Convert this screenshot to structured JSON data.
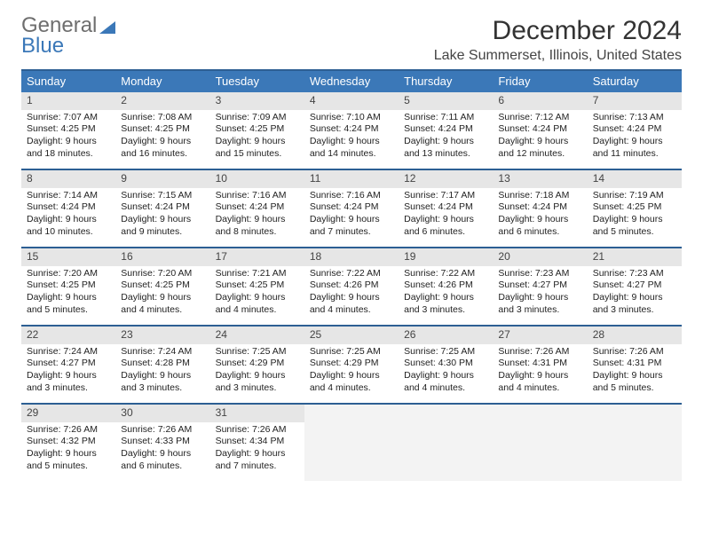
{
  "logo": {
    "line1": "General",
    "line2": "Blue"
  },
  "header": {
    "title": "December 2024",
    "location": "Lake Summerset, Illinois, United States"
  },
  "colors": {
    "header_bar": "#3b78b8",
    "week_divider": "#2d5f93",
    "daynum_bg": "#e6e6e6",
    "empty_bg": "#f3f3f3",
    "text": "#222222"
  },
  "daysOfWeek": [
    "Sunday",
    "Monday",
    "Tuesday",
    "Wednesday",
    "Thursday",
    "Friday",
    "Saturday"
  ],
  "weeks": [
    [
      {
        "n": "1",
        "sunrise": "7:07 AM",
        "sunset": "4:25 PM",
        "daylight": "9 hours and 18 minutes."
      },
      {
        "n": "2",
        "sunrise": "7:08 AM",
        "sunset": "4:25 PM",
        "daylight": "9 hours and 16 minutes."
      },
      {
        "n": "3",
        "sunrise": "7:09 AM",
        "sunset": "4:25 PM",
        "daylight": "9 hours and 15 minutes."
      },
      {
        "n": "4",
        "sunrise": "7:10 AM",
        "sunset": "4:24 PM",
        "daylight": "9 hours and 14 minutes."
      },
      {
        "n": "5",
        "sunrise": "7:11 AM",
        "sunset": "4:24 PM",
        "daylight": "9 hours and 13 minutes."
      },
      {
        "n": "6",
        "sunrise": "7:12 AM",
        "sunset": "4:24 PM",
        "daylight": "9 hours and 12 minutes."
      },
      {
        "n": "7",
        "sunrise": "7:13 AM",
        "sunset": "4:24 PM",
        "daylight": "9 hours and 11 minutes."
      }
    ],
    [
      {
        "n": "8",
        "sunrise": "7:14 AM",
        "sunset": "4:24 PM",
        "daylight": "9 hours and 10 minutes."
      },
      {
        "n": "9",
        "sunrise": "7:15 AM",
        "sunset": "4:24 PM",
        "daylight": "9 hours and 9 minutes."
      },
      {
        "n": "10",
        "sunrise": "7:16 AM",
        "sunset": "4:24 PM",
        "daylight": "9 hours and 8 minutes."
      },
      {
        "n": "11",
        "sunrise": "7:16 AM",
        "sunset": "4:24 PM",
        "daylight": "9 hours and 7 minutes."
      },
      {
        "n": "12",
        "sunrise": "7:17 AM",
        "sunset": "4:24 PM",
        "daylight": "9 hours and 6 minutes."
      },
      {
        "n": "13",
        "sunrise": "7:18 AM",
        "sunset": "4:24 PM",
        "daylight": "9 hours and 6 minutes."
      },
      {
        "n": "14",
        "sunrise": "7:19 AM",
        "sunset": "4:25 PM",
        "daylight": "9 hours and 5 minutes."
      }
    ],
    [
      {
        "n": "15",
        "sunrise": "7:20 AM",
        "sunset": "4:25 PM",
        "daylight": "9 hours and 5 minutes."
      },
      {
        "n": "16",
        "sunrise": "7:20 AM",
        "sunset": "4:25 PM",
        "daylight": "9 hours and 4 minutes."
      },
      {
        "n": "17",
        "sunrise": "7:21 AM",
        "sunset": "4:25 PM",
        "daylight": "9 hours and 4 minutes."
      },
      {
        "n": "18",
        "sunrise": "7:22 AM",
        "sunset": "4:26 PM",
        "daylight": "9 hours and 4 minutes."
      },
      {
        "n": "19",
        "sunrise": "7:22 AM",
        "sunset": "4:26 PM",
        "daylight": "9 hours and 3 minutes."
      },
      {
        "n": "20",
        "sunrise": "7:23 AM",
        "sunset": "4:27 PM",
        "daylight": "9 hours and 3 minutes."
      },
      {
        "n": "21",
        "sunrise": "7:23 AM",
        "sunset": "4:27 PM",
        "daylight": "9 hours and 3 minutes."
      }
    ],
    [
      {
        "n": "22",
        "sunrise": "7:24 AM",
        "sunset": "4:27 PM",
        "daylight": "9 hours and 3 minutes."
      },
      {
        "n": "23",
        "sunrise": "7:24 AM",
        "sunset": "4:28 PM",
        "daylight": "9 hours and 3 minutes."
      },
      {
        "n": "24",
        "sunrise": "7:25 AM",
        "sunset": "4:29 PM",
        "daylight": "9 hours and 3 minutes."
      },
      {
        "n": "25",
        "sunrise": "7:25 AM",
        "sunset": "4:29 PM",
        "daylight": "9 hours and 4 minutes."
      },
      {
        "n": "26",
        "sunrise": "7:25 AM",
        "sunset": "4:30 PM",
        "daylight": "9 hours and 4 minutes."
      },
      {
        "n": "27",
        "sunrise": "7:26 AM",
        "sunset": "4:31 PM",
        "daylight": "9 hours and 4 minutes."
      },
      {
        "n": "28",
        "sunrise": "7:26 AM",
        "sunset": "4:31 PM",
        "daylight": "9 hours and 5 minutes."
      }
    ],
    [
      {
        "n": "29",
        "sunrise": "7:26 AM",
        "sunset": "4:32 PM",
        "daylight": "9 hours and 5 minutes."
      },
      {
        "n": "30",
        "sunrise": "7:26 AM",
        "sunset": "4:33 PM",
        "daylight": "9 hours and 6 minutes."
      },
      {
        "n": "31",
        "sunrise": "7:26 AM",
        "sunset": "4:34 PM",
        "daylight": "9 hours and 7 minutes."
      },
      {
        "empty": true
      },
      {
        "empty": true
      },
      {
        "empty": true
      },
      {
        "empty": true
      }
    ]
  ],
  "labels": {
    "sunrise": "Sunrise: ",
    "sunset": "Sunset: ",
    "daylight": "Daylight: "
  }
}
